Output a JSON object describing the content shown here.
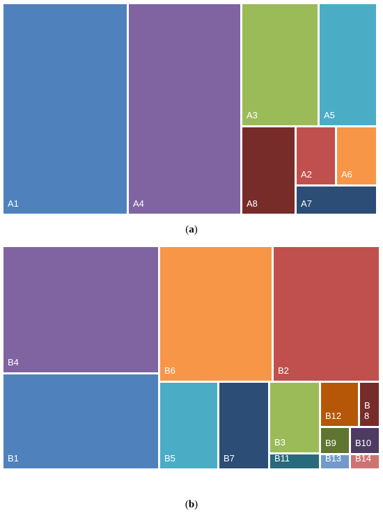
{
  "chart_data": [
    {
      "type": "treemap",
      "caption_letter": "a",
      "tiles": [
        {
          "name": "A1",
          "label": "A1",
          "color": "#4F81BD"
        },
        {
          "name": "A4",
          "label": "A4",
          "color": "#8064A2"
        },
        {
          "name": "A3",
          "label": "A3",
          "color": "#9BBB59"
        },
        {
          "name": "A5",
          "label": "A5",
          "color": "#4BACC6"
        },
        {
          "name": "A8",
          "label": "A8",
          "color": "#772C2A"
        },
        {
          "name": "A2",
          "label": "A2",
          "color": "#C0504D"
        },
        {
          "name": "A6",
          "label": "A6",
          "color": "#F79646"
        },
        {
          "name": "A7",
          "label": "A7",
          "color": "#2C4D75"
        }
      ]
    },
    {
      "type": "treemap",
      "caption_letter": "b",
      "tiles": [
        {
          "name": "B4",
          "label": "B4",
          "color": "#8064A2"
        },
        {
          "name": "B1",
          "label": "B1",
          "color": "#4F81BD"
        },
        {
          "name": "B6",
          "label": "B6",
          "color": "#F79646"
        },
        {
          "name": "B2",
          "label": "B2",
          "color": "#C0504D"
        },
        {
          "name": "B5",
          "label": "B5",
          "color": "#4BACC6"
        },
        {
          "name": "B7",
          "label": "B7",
          "color": "#2C4D75"
        },
        {
          "name": "B3",
          "label": "B3",
          "color": "#9BBB59"
        },
        {
          "name": "B11",
          "label": "B11",
          "color": "#276A7C"
        },
        {
          "name": "B12",
          "label": "B12",
          "color": "#B65708"
        },
        {
          "name": "B8",
          "label": "B\n8",
          "color": "#772C2A"
        },
        {
          "name": "B9",
          "label": "B9",
          "color": "#5F7530"
        },
        {
          "name": "B10",
          "label": "B10",
          "color": "#4D3B62"
        },
        {
          "name": "B13",
          "label": "B13",
          "color": "#729ACA"
        },
        {
          "name": "B14",
          "label": "B14",
          "color": "#CD7371"
        }
      ]
    }
  ]
}
